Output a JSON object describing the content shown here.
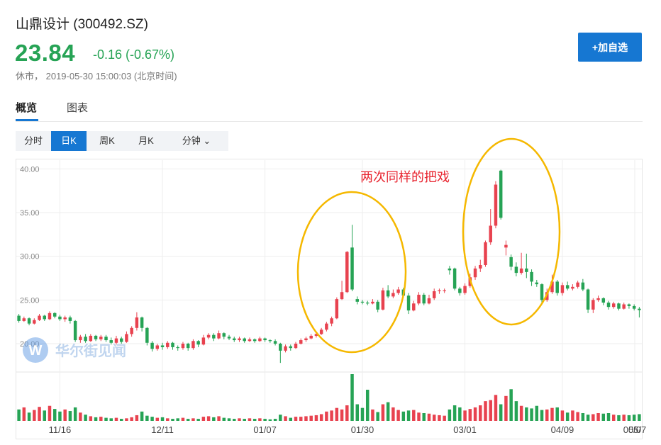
{
  "header": {
    "title": "山鼎设计  (300492.SZ)",
    "price": "23.84",
    "change": "-0.16 (-0.67%)",
    "status": "休市，  2019-05-30 15:00:03  (北京时间)",
    "add_button_label": "+加自选"
  },
  "tabs": [
    {
      "label": "概览",
      "active": true
    },
    {
      "label": "图表",
      "active": false
    }
  ],
  "periods": [
    {
      "label": "分时",
      "active": false
    },
    {
      "label": "日K",
      "active": true
    },
    {
      "label": "周K",
      "active": false
    },
    {
      "label": "月K",
      "active": false
    },
    {
      "label": "分钟 ⌄",
      "active": false
    }
  ],
  "annotation": "两次同样的把戏",
  "watermark": "华尔街见闻",
  "colors": {
    "up": "#e8424f",
    "down": "#26a355",
    "accent": "#1677d2",
    "circle": "#f5b800"
  },
  "chart_data": {
    "type": "candlestick",
    "y_ticks": [
      "40.00",
      "35.00",
      "30.00",
      "25.00",
      "20.00"
    ],
    "x_ticks": [
      "11/16",
      "12/11",
      "01/07",
      "01/30",
      "03/01",
      "04/09",
      "05/07",
      "05/"
    ],
    "ylim": [
      17,
      41
    ],
    "candles": [
      [
        23.2,
        22.6,
        23.4,
        22.4
      ],
      [
        22.6,
        22.9,
        23.1,
        22.5
      ],
      [
        22.9,
        22.3,
        23.0,
        22.1
      ],
      [
        22.3,
        22.7,
        22.9,
        22.2
      ],
      [
        22.7,
        23.2,
        23.4,
        22.6
      ],
      [
        23.2,
        22.8,
        23.3,
        22.6
      ],
      [
        22.8,
        23.5,
        23.7,
        22.7
      ],
      [
        23.5,
        23.1,
        23.6,
        22.9
      ],
      [
        23.1,
        22.8,
        23.3,
        22.6
      ],
      [
        22.8,
        23.0,
        23.2,
        22.5
      ],
      [
        23.0,
        22.6,
        23.2,
        22.3
      ],
      [
        22.6,
        20.4,
        22.7,
        20.2
      ],
      [
        20.4,
        20.8,
        21.0,
        20.1
      ],
      [
        20.8,
        20.3,
        21.1,
        20.1
      ],
      [
        20.3,
        20.9,
        21.1,
        20.2
      ],
      [
        20.9,
        20.5,
        21.0,
        20.3
      ],
      [
        20.5,
        20.8,
        21.0,
        20.3
      ],
      [
        20.8,
        20.4,
        21.0,
        20.2
      ],
      [
        20.4,
        20.1,
        20.7,
        19.9
      ],
      [
        20.1,
        20.6,
        20.9,
        19.9
      ],
      [
        20.6,
        20.2,
        20.8,
        20.0
      ],
      [
        20.2,
        21.1,
        21.4,
        20.1
      ],
      [
        21.1,
        21.8,
        22.0,
        20.8
      ],
      [
        21.8,
        23.0,
        23.6,
        21.5
      ],
      [
        23.0,
        21.8,
        23.1,
        21.4
      ],
      [
        21.8,
        20.1,
        21.9,
        19.8
      ],
      [
        20.1,
        19.4,
        20.3,
        19.1
      ],
      [
        19.4,
        19.8,
        20.0,
        19.2
      ],
      [
        19.8,
        19.6,
        20.1,
        19.3
      ],
      [
        19.6,
        20.1,
        20.3,
        19.4
      ],
      [
        20.1,
        19.6,
        20.2,
        19.3
      ],
      [
        19.6,
        19.5,
        19.8,
        19.2
      ],
      [
        19.5,
        20.0,
        20.2,
        19.3
      ],
      [
        20.0,
        19.5,
        20.1,
        19.2
      ],
      [
        19.5,
        20.3,
        20.5,
        19.3
      ],
      [
        20.3,
        19.9,
        20.4,
        19.6
      ],
      [
        19.9,
        20.7,
        21.0,
        19.8
      ],
      [
        20.7,
        21.0,
        21.2,
        20.5
      ],
      [
        21.0,
        20.6,
        21.2,
        20.3
      ],
      [
        20.6,
        21.2,
        21.5,
        20.5
      ],
      [
        21.2,
        20.8,
        21.3,
        20.5
      ],
      [
        20.8,
        20.6,
        21.0,
        20.4
      ],
      [
        20.6,
        20.4,
        20.8,
        20.2
      ],
      [
        20.4,
        20.6,
        20.8,
        20.2
      ],
      [
        20.6,
        20.3,
        20.7,
        20.1
      ],
      [
        20.3,
        20.5,
        20.7,
        20.2
      ],
      [
        20.5,
        20.3,
        20.6,
        20.1
      ],
      [
        20.3,
        20.6,
        20.8,
        20.2
      ],
      [
        20.6,
        20.4,
        20.7,
        20.2
      ],
      [
        20.4,
        20.3,
        20.5,
        20.1
      ],
      [
        20.3,
        20.0,
        20.5,
        19.8
      ],
      [
        20.0,
        19.2,
        20.1,
        17.8
      ],
      [
        19.2,
        19.7,
        19.9,
        19.0
      ],
      [
        19.7,
        19.5,
        19.9,
        19.2
      ],
      [
        19.5,
        20.0,
        20.2,
        19.4
      ],
      [
        20.0,
        20.4,
        20.6,
        19.9
      ],
      [
        20.4,
        20.6,
        20.8,
        20.2
      ],
      [
        20.6,
        20.9,
        21.1,
        20.5
      ],
      [
        20.9,
        21.1,
        21.3,
        20.7
      ],
      [
        21.1,
        21.6,
        21.8,
        21.0
      ],
      [
        21.6,
        22.3,
        22.5,
        21.4
      ],
      [
        22.3,
        22.9,
        23.1,
        22.0
      ],
      [
        22.9,
        25.1,
        25.3,
        22.8
      ],
      [
        25.1,
        25.9,
        27.2,
        25.0
      ],
      [
        25.9,
        30.5,
        30.6,
        25.8
      ],
      [
        31.0,
        26.2,
        33.6,
        26.0
      ],
      [
        25.1,
        24.8,
        25.4,
        24.5
      ],
      [
        24.8,
        24.7,
        25.0,
        24.5
      ],
      [
        24.7,
        24.6,
        24.9,
        24.4
      ],
      [
        24.6,
        24.8,
        25.1,
        24.5
      ],
      [
        24.8,
        23.9,
        25.0,
        23.6
      ],
      [
        23.9,
        26.1,
        26.4,
        23.8
      ],
      [
        26.1,
        25.4,
        26.7,
        25.2
      ],
      [
        25.4,
        25.8,
        26.2,
        25.2
      ],
      [
        25.8,
        26.2,
        26.5,
        25.6
      ],
      [
        26.2,
        25.5,
        26.4,
        25.3
      ],
      [
        25.5,
        23.8,
        25.8,
        23.4
      ],
      [
        23.8,
        24.6,
        24.9,
        23.7
      ],
      [
        24.6,
        25.6,
        25.9,
        24.4
      ],
      [
        25.6,
        24.6,
        25.8,
        24.4
      ],
      [
        24.6,
        25.2,
        25.6,
        24.5
      ],
      [
        25.2,
        26.0,
        26.3,
        25.0
      ],
      [
        26.0,
        26.1,
        26.3,
        25.7
      ],
      [
        26.1,
        26.1,
        26.3,
        25.8
      ],
      [
        28.6,
        28.4,
        28.9,
        27.9
      ],
      [
        28.6,
        26.3,
        28.7,
        26.1
      ],
      [
        26.3,
        25.8,
        26.5,
        25.5
      ],
      [
        25.8,
        26.6,
        26.9,
        25.6
      ],
      [
        26.6,
        27.6,
        28.0,
        26.4
      ],
      [
        27.6,
        28.6,
        28.9,
        27.3
      ],
      [
        28.6,
        29.0,
        29.6,
        28.2
      ],
      [
        29.0,
        31.6,
        31.8,
        28.8
      ],
      [
        31.6,
        33.5,
        35.4,
        31.3
      ],
      [
        33.5,
        38.2,
        38.6,
        33.2
      ],
      [
        39.8,
        34.4,
        39.9,
        34.2
      ],
      [
        31.0,
        31.3,
        31.8,
        30.1
      ],
      [
        29.9,
        28.8,
        30.2,
        28.4
      ],
      [
        28.8,
        28.1,
        29.3,
        27.7
      ],
      [
        28.1,
        28.6,
        30.4,
        27.9
      ],
      [
        28.6,
        28.2,
        30.3,
        27.5
      ],
      [
        28.2,
        27.1,
        28.5,
        26.6
      ],
      [
        27.0,
        26.8,
        27.3,
        26.5
      ],
      [
        26.8,
        25.0,
        26.9,
        24.6
      ],
      [
        25.0,
        25.9,
        26.3,
        24.8
      ],
      [
        25.9,
        27.1,
        27.9,
        25.7
      ],
      [
        27.1,
        25.8,
        27.3,
        25.5
      ],
      [
        25.8,
        26.7,
        27.0,
        25.5
      ],
      [
        26.7,
        26.3,
        27.1,
        26.1
      ],
      [
        26.3,
        26.5,
        26.8,
        26.1
      ],
      [
        26.5,
        27.0,
        27.2,
        26.3
      ],
      [
        27.0,
        26.2,
        27.4,
        26.0
      ],
      [
        26.2,
        23.9,
        26.3,
        23.5
      ],
      [
        23.9,
        25.0,
        25.2,
        23.5
      ],
      [
        25.0,
        25.2,
        25.5,
        24.8
      ],
      [
        25.2,
        24.7,
        25.3,
        24.4
      ],
      [
        24.7,
        24.2,
        24.9,
        23.9
      ],
      [
        24.2,
        24.6,
        24.8,
        24.0
      ],
      [
        24.6,
        24.0,
        24.7,
        23.8
      ],
      [
        24.0,
        24.5,
        24.7,
        23.9
      ],
      [
        24.5,
        24.3,
        24.6,
        24.0
      ],
      [
        24.3,
        24.0,
        24.5,
        23.8
      ],
      [
        24.0,
        23.84,
        24.2,
        23.0
      ]
    ],
    "volume": [
      2.2,
      2.6,
      1.6,
      2.1,
      2.7,
      2.0,
      2.9,
      2.3,
      1.8,
      2.2,
      1.9,
      2.6,
      1.6,
      1.2,
      0.9,
      0.7,
      0.8,
      0.6,
      0.5,
      0.6,
      0.4,
      0.5,
      0.7,
      1.1,
      1.8,
      1.0,
      0.8,
      0.6,
      0.7,
      0.5,
      0.4,
      0.5,
      0.6,
      0.4,
      0.5,
      0.4,
      0.8,
      0.9,
      0.7,
      0.9,
      0.6,
      0.5,
      0.4,
      0.5,
      0.4,
      0.5,
      0.4,
      0.5,
      0.4,
      0.3,
      0.4,
      1.2,
      0.9,
      0.6,
      0.8,
      0.8,
      0.9,
      1.0,
      1.1,
      1.3,
      1.8,
      2.0,
      2.5,
      2.2,
      3.0,
      9.0,
      3.2,
      2.5,
      6.0,
      2.2,
      1.7,
      3.2,
      3.6,
      2.6,
      2.1,
      1.8,
      2.0,
      2.1,
      1.6,
      1.5,
      1.4,
      1.2,
      1.1,
      1.0,
      2.2,
      3.0,
      2.6,
      2.0,
      2.3,
      2.6,
      3.0,
      3.8,
      4.0,
      5.0,
      3.2,
      4.8,
      6.1,
      3.8,
      2.9,
      2.6,
      2.4,
      2.9,
      2.1,
      2.2,
      2.5,
      2.6,
      2.0,
      1.6,
      2.0,
      1.7,
      1.5,
      1.2,
      1.3,
      1.5,
      1.4,
      1.5,
      1.2,
      1.1,
      1.2,
      1.1,
      1.2,
      1.3
    ]
  }
}
